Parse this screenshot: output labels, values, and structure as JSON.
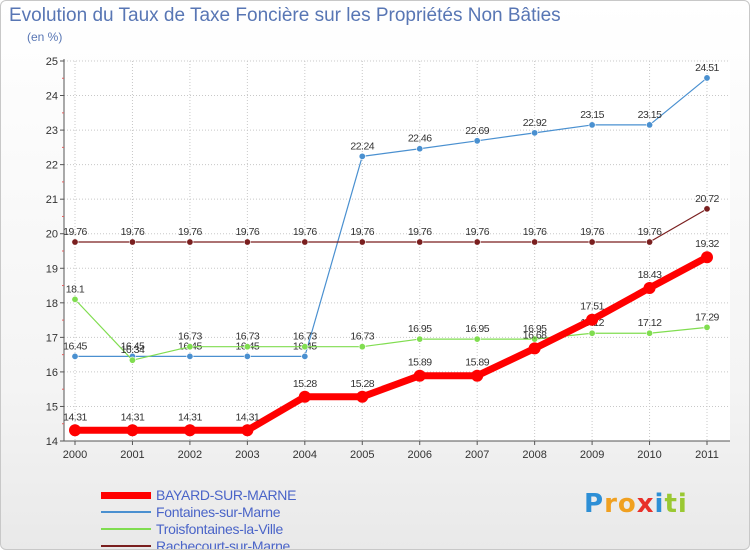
{
  "chart_data": {
    "type": "line",
    "title": "Evolution du Taux de Taxe Foncière sur les Propriétés Non Bâties",
    "unit_label": "(en %)",
    "xlabel": "",
    "ylabel": "(en %)",
    "ylim": [
      14,
      25
    ],
    "yticks": [
      14,
      15,
      16,
      17,
      18,
      19,
      20,
      21,
      22,
      23,
      24,
      25
    ],
    "grid": true,
    "x": [
      "2000",
      "2001",
      "2002",
      "2003",
      "2004",
      "2005",
      "2006",
      "2007",
      "2008",
      "2009",
      "2010",
      "2011"
    ],
    "series": [
      {
        "name": "BAYARD-SUR-MARNE",
        "color": "#ff0000",
        "values": [
          14.31,
          14.31,
          14.31,
          14.31,
          15.28,
          15.28,
          15.89,
          15.89,
          16.68,
          17.51,
          18.43,
          19.32
        ],
        "labels": [
          "14.31",
          "14.31",
          "14.31",
          "14.31",
          "15.28",
          "15.28",
          "15.89",
          "15.89",
          "16.68",
          "17.51",
          "18.43",
          "19.32"
        ]
      },
      {
        "name": "Fontaines-sur-Marne",
        "color": "#4a90d0",
        "values": [
          16.45,
          16.45,
          16.45,
          16.45,
          16.45,
          22.24,
          22.46,
          22.69,
          22.92,
          23.15,
          23.15,
          24.51
        ],
        "labels": [
          "16.45",
          "16.45",
          "16.45",
          "16.45",
          "16.45",
          "22.24",
          "22.46",
          "22.69",
          "22.92",
          "23.15",
          "23.15",
          "24.51"
        ]
      },
      {
        "name": "Troisfontaines-la-Ville",
        "color": "#80dd50",
        "values": [
          18.1,
          16.34,
          16.73,
          16.73,
          16.73,
          16.73,
          16.95,
          16.95,
          16.95,
          17.12,
          17.12,
          17.29
        ],
        "labels": [
          "18.1",
          "16.34",
          "16.73",
          "16.73",
          "16.73",
          "16.73",
          "16.95",
          "16.95",
          "16.95",
          "17.12",
          "17.12",
          "17.29"
        ]
      },
      {
        "name": "Rachecourt-sur-Marne",
        "color": "#7a1f1f",
        "values": [
          19.76,
          19.76,
          19.76,
          19.76,
          19.76,
          19.76,
          19.76,
          19.76,
          19.76,
          19.76,
          19.76,
          20.72
        ],
        "labels": [
          "19.76",
          "19.76",
          "19.76",
          "19.76",
          "19.76",
          "19.76",
          "19.76",
          "19.76",
          "19.76",
          "19.76",
          "19.76",
          "20.72"
        ]
      }
    ],
    "legend_position": "bottom-left"
  },
  "logo": {
    "letters": [
      "P",
      "r",
      "o",
      "x",
      "i",
      "t",
      "i"
    ],
    "colors": [
      "#2d8fd6",
      "#f0a020",
      "#f0a020",
      "#e8302a",
      "#2d8fd6",
      "#9ac832",
      "#9ac832"
    ]
  }
}
